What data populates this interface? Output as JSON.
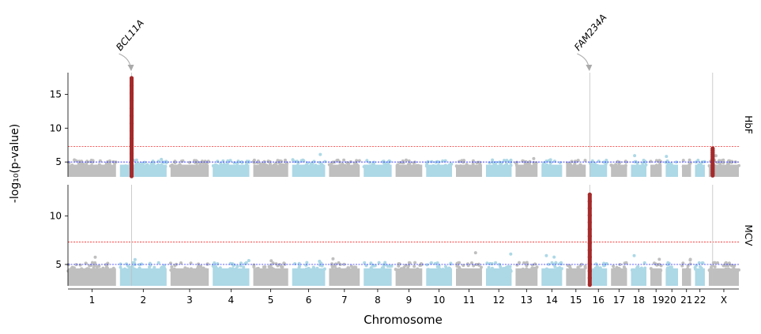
{
  "chart_data": {
    "type": "scatter",
    "subtype": "manhattan",
    "xlabel": "Chromosome",
    "ylabel": "-log₁₀(p-value)",
    "chromosomes": [
      "1",
      "2",
      "3",
      "4",
      "5",
      "6",
      "7",
      "8",
      "9",
      "10",
      "11",
      "12",
      "13",
      "14",
      "15",
      "16",
      "17",
      "18",
      "19",
      "20",
      "21",
      "22",
      "X"
    ],
    "chromosome_tick_labels": [
      "1",
      "2",
      "3",
      "4",
      "5",
      "6",
      "7",
      "8",
      "9",
      "10",
      "11",
      "12",
      "13",
      "14",
      "15",
      "16",
      "17",
      "18",
      "1920",
      "21",
      "22",
      "X"
    ],
    "chromosome_lengths_mb": [
      249,
      242,
      198,
      190,
      181,
      171,
      159,
      145,
      138,
      134,
      135,
      133,
      114,
      107,
      102,
      90,
      83,
      80,
      59,
      64,
      47,
      51,
      156
    ],
    "colors": {
      "odd": "#bfbfbf",
      "even": "#add8e6",
      "hit": "#a52a2a",
      "suggestive_line": "#0000ff",
      "significance_line": "#ff0000",
      "locus_line": "#c0c0c0",
      "arrow": "#aaaaaa"
    },
    "suggestive_threshold": 5,
    "genome_wide_threshold": 7.3,
    "panels": [
      {
        "name": "HbF",
        "ylim": [
          2.8,
          18.2
        ],
        "yticks": [
          5,
          10,
          15
        ],
        "background_max": 5.3,
        "hits": [
          {
            "chromosome": "2",
            "position_mb": 60.5,
            "max": 17.4,
            "min": 2.9,
            "gene": "BCL11A"
          },
          {
            "chromosome": "X",
            "position_mb": 20,
            "max": 7.0,
            "min": 3.0
          }
        ],
        "locus_lines": [
          {
            "chromosome": "2",
            "position_mb": 60.5
          },
          {
            "chromosome": "16",
            "position_mb": 0.3
          },
          {
            "chromosome": "X",
            "position_mb": 20
          }
        ]
      },
      {
        "name": "MCV",
        "ylim": [
          2.8,
          13.2
        ],
        "yticks": [
          5,
          10
        ],
        "background_max": 5.2,
        "hits": [
          {
            "chromosome": "16",
            "position_mb": 0.3,
            "max": 12.2,
            "min": 2.9,
            "gene": "FAM234A"
          }
        ],
        "locus_lines": [
          {
            "chromosome": "2",
            "position_mb": 60.5
          },
          {
            "chromosome": "16",
            "position_mb": 0.3
          },
          {
            "chromosome": "X",
            "position_mb": 20
          }
        ]
      }
    ],
    "annotations": [
      {
        "text": "BCL11A",
        "chromosome": "2",
        "position_mb": 60.5
      },
      {
        "text": "FAM234A",
        "chromosome": "16",
        "position_mb": 0.3
      }
    ]
  }
}
